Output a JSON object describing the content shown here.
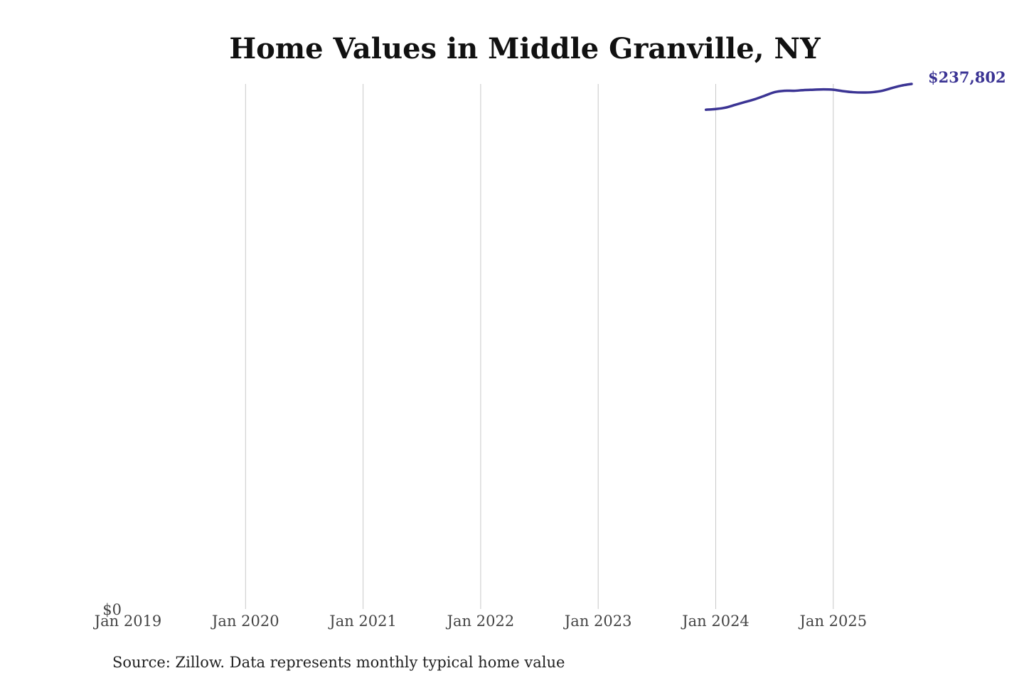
{
  "chart_data": {
    "type": "line",
    "title": "Home Values in Middle Granville, NY",
    "xlabel": "",
    "ylabel": "",
    "x_ticks": [
      "Jan 2019",
      "Jan 2020",
      "Jan 2021",
      "Jan 2022",
      "Jan 2023",
      "Jan 2024",
      "Jan 2025"
    ],
    "y_ticks": [
      "$0"
    ],
    "xlim": [
      "2019-01",
      "2025-09"
    ],
    "ylim": [
      0,
      237802
    ],
    "grid": "vertical",
    "legend": "none",
    "series": [
      {
        "color": "#3b3494",
        "points": [
          {
            "x": "2023-12",
            "y": 226138
          },
          {
            "x": "2024-01",
            "y": 226455
          },
          {
            "x": "2024-02",
            "y": 227090
          },
          {
            "x": "2024-03",
            "y": 228360
          },
          {
            "x": "2024-04",
            "y": 229631
          },
          {
            "x": "2024-05",
            "y": 230901
          },
          {
            "x": "2024-06",
            "y": 232489
          },
          {
            "x": "2024-07",
            "y": 234077
          },
          {
            "x": "2024-08",
            "y": 234712
          },
          {
            "x": "2024-09",
            "y": 234712
          },
          {
            "x": "2024-10",
            "y": 235029
          },
          {
            "x": "2024-11",
            "y": 235188
          },
          {
            "x": "2024-12",
            "y": 235347
          },
          {
            "x": "2025-01",
            "y": 235188
          },
          {
            "x": "2025-02",
            "y": 234553
          },
          {
            "x": "2025-03",
            "y": 234077
          },
          {
            "x": "2025-04",
            "y": 233918
          },
          {
            "x": "2025-05",
            "y": 234077
          },
          {
            "x": "2025-06",
            "y": 234712
          },
          {
            "x": "2025-07",
            "y": 235982
          },
          {
            "x": "2025-08",
            "y": 237094
          },
          {
            "x": "2025-09",
            "y": 237802
          }
        ]
      }
    ],
    "end_label": "$237,802"
  },
  "source_note": "Source: Zillow. Data represents monthly typical home value"
}
